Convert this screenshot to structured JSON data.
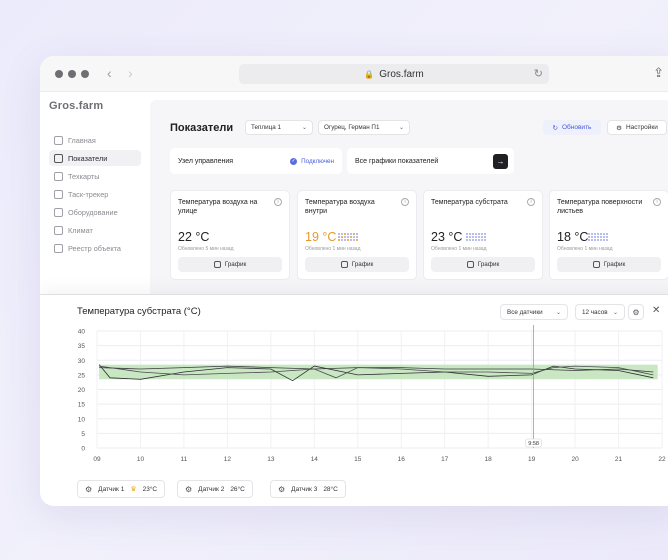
{
  "browser": {
    "url": "Gros.farm"
  },
  "app": {
    "logo": "Gros.farm"
  },
  "sidebar": {
    "items": [
      {
        "label": "Главная",
        "icon": "home-icon",
        "active": false
      },
      {
        "label": "Показатели",
        "icon": "gauge-icon",
        "active": true
      },
      {
        "label": "Техкарты",
        "icon": "map-icon",
        "active": false
      },
      {
        "label": "Таск-трекер",
        "icon": "tasks-icon",
        "active": false
      },
      {
        "label": "Оборудование",
        "icon": "equipment-icon",
        "active": false
      },
      {
        "label": "Климат",
        "icon": "climate-icon",
        "active": false
      },
      {
        "label": "Реестр объекта",
        "icon": "registry-icon",
        "active": false
      }
    ]
  },
  "header": {
    "title": "Показатели",
    "greenhouse_select": "Теплица 1",
    "crop_select": "Огурец, Герман П1",
    "refresh_label": "Обновить",
    "settings_label": "Настройки"
  },
  "node": {
    "label": "Узел управления",
    "status": "Подключен"
  },
  "all_graphs": {
    "label": "Все графики показателей"
  },
  "metrics": [
    {
      "title": "Температура воздуха на улице",
      "value": "22 °C",
      "updated": "Обновлено 5 мин назад",
      "warn": false,
      "spark": false
    },
    {
      "title": "Температура воздуха внутри",
      "value": "19 °C",
      "updated": "Обновлено 1 мин назад",
      "warn": true,
      "spark": true
    },
    {
      "title": "Температура субстрата",
      "value": "23 °C",
      "updated": "Обновлено 1 мин назад",
      "warn": false,
      "spark": true
    },
    {
      "title": "Температура поверхности листьев",
      "value": "18 °C",
      "updated": "Обновлено 1 мин назад",
      "warn": false,
      "spark": true
    }
  ],
  "graph_button_label": "График",
  "panel": {
    "title": "Температура субстрата (°C)",
    "sensors_select": "Все датчики",
    "period_select": "12 часов",
    "cursor_label": "9:58"
  },
  "chart_data": {
    "type": "line",
    "x_ticks": [
      "09",
      "10",
      "11",
      "12",
      "13",
      "14",
      "15",
      "16",
      "17",
      "18",
      "19",
      "20",
      "21",
      "22"
    ],
    "y_ticks": [
      0,
      5,
      10,
      15,
      20,
      25,
      30,
      35,
      40
    ],
    "ylim": [
      0,
      40
    ],
    "xlim": [
      9,
      22
    ],
    "band": [
      23.5,
      28.5
    ],
    "band_color": "#bfe3b8",
    "cursor_x": 19,
    "series": [
      {
        "x": [
          9.05,
          9.3,
          10,
          11,
          12,
          13,
          13.5,
          14,
          15,
          16,
          17,
          18,
          19,
          19.5,
          20,
          21,
          21.8
        ],
        "y": [
          28.5,
          24,
          23.5,
          26,
          27.5,
          27,
          23,
          28,
          25,
          25.5,
          26,
          24.5,
          25,
          28,
          27,
          26.5,
          24
        ]
      },
      {
        "x": [
          9.05,
          10,
          11,
          12,
          13,
          14,
          15,
          16,
          17,
          18,
          19,
          20,
          21,
          21.8
        ],
        "y": [
          27.5,
          27,
          27.5,
          28,
          27.5,
          27,
          27.5,
          27.5,
          27,
          27,
          27,
          26.5,
          27,
          26
        ]
      },
      {
        "x": [
          9.05,
          10,
          11,
          12,
          13,
          14,
          14.5,
          15,
          16,
          17,
          18,
          19,
          19.5,
          20,
          21,
          21.8
        ],
        "y": [
          28,
          26,
          25,
          25.5,
          26,
          27,
          24,
          27.5,
          27,
          26,
          26,
          25.5,
          27.5,
          28,
          27.5,
          25
        ]
      }
    ]
  },
  "legend": [
    {
      "label": "Датчик 1",
      "value": "23°C",
      "crown": true
    },
    {
      "label": "Датчик 2",
      "value": "26°C",
      "crown": false
    },
    {
      "label": "Датчик 3",
      "value": "28°C",
      "crown": false
    }
  ]
}
